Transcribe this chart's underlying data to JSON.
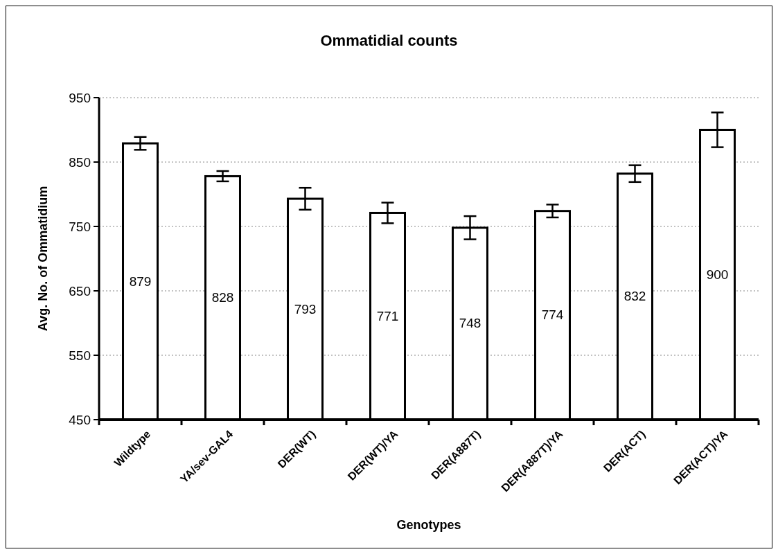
{
  "chart_data": {
    "type": "bar",
    "title": "Ommatidial counts",
    "xlabel": "Genotypes",
    "ylabel": "Avg. No. of Ommatidium",
    "categories": [
      "Wildtype",
      "YA/sev-GAL4",
      "DER(WT)",
      "DER(WT)/YA",
      "DER(A887T)",
      "DER(A887T)/YA",
      "DER(ACT)",
      "DER(ACT)/YA"
    ],
    "values": [
      879,
      828,
      793,
      771,
      748,
      774,
      832,
      900
    ],
    "errors": [
      10,
      8,
      17,
      16,
      18,
      10,
      13,
      27
    ],
    "color": "#ffffff",
    "data_labels": true,
    "ylim": [
      450,
      950
    ],
    "yticks": [
      450,
      550,
      650,
      750,
      850,
      950
    ],
    "grid": "y"
  }
}
